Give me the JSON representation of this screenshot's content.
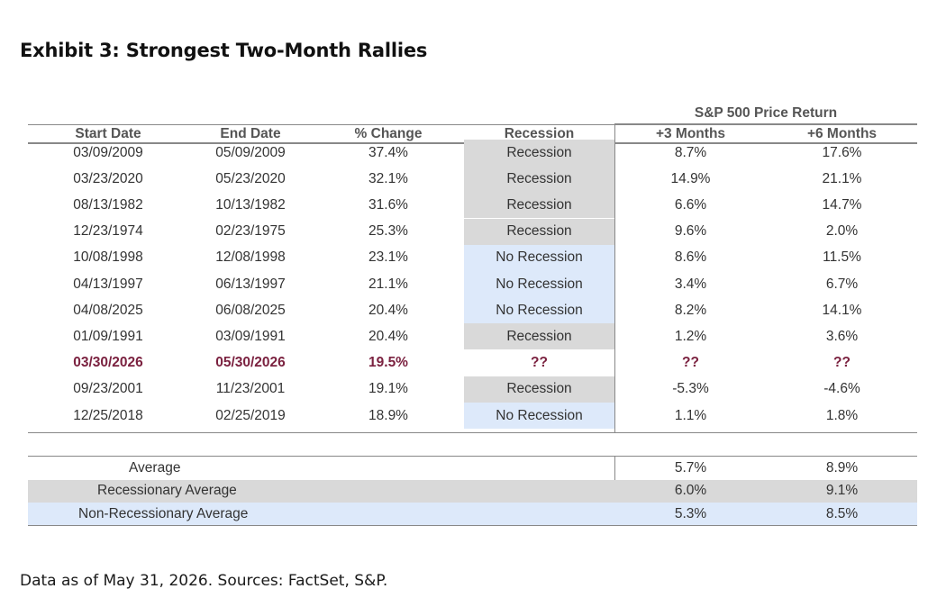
{
  "title": "Exhibit 3: Strongest Two-Month Rallies",
  "footnote": "Data as of May 31, 2026. Sources: FactSet, S&P.",
  "table": {
    "group_header": "S&P 500 Price Return",
    "columns": [
      "Start Date",
      "End Date",
      "% Change",
      "Recession",
      "+3 Months",
      "+6 Months"
    ],
    "rows": [
      {
        "start": "03/09/2009",
        "end": "05/09/2009",
        "change": "37.4%",
        "recession": "Recession",
        "m3": "8.7%",
        "m6": "17.6%"
      },
      {
        "start": "03/23/2020",
        "end": "05/23/2020",
        "change": "32.1%",
        "recession": "Recession",
        "m3": "14.9%",
        "m6": "21.1%"
      },
      {
        "start": "08/13/1982",
        "end": "10/13/1982",
        "change": "31.6%",
        "recession": "Recession",
        "m3": "6.6%",
        "m6": "14.7%"
      },
      {
        "start": "12/23/1974",
        "end": "02/23/1975",
        "change": "25.3%",
        "recession": "Recession",
        "m3": "9.6%",
        "m6": "2.0%"
      },
      {
        "start": "10/08/1998",
        "end": "12/08/1998",
        "change": "23.1%",
        "recession": "No Recession",
        "m3": "8.6%",
        "m6": "11.5%"
      },
      {
        "start": "04/13/1997",
        "end": "06/13/1997",
        "change": "21.1%",
        "recession": "No Recession",
        "m3": "3.4%",
        "m6": "6.7%"
      },
      {
        "start": "04/08/2025",
        "end": "06/08/2025",
        "change": "20.4%",
        "recession": "No Recession",
        "m3": "8.2%",
        "m6": "14.1%"
      },
      {
        "start": "01/09/1991",
        "end": "03/09/1991",
        "change": "20.4%",
        "recession": "Recession",
        "m3": "1.2%",
        "m6": "3.6%"
      },
      {
        "start": "03/30/2026",
        "end": "05/30/2026",
        "change": "19.5%",
        "recession": "??",
        "m3": "??",
        "m6": "??"
      },
      {
        "start": "09/23/2001",
        "end": "11/23/2001",
        "change": "19.1%",
        "recession": "Recession",
        "m3": "-5.3%",
        "m6": "-4.6%"
      },
      {
        "start": "12/25/2018",
        "end": "02/25/2019",
        "change": "18.9%",
        "recession": "No Recession",
        "m3": "1.1%",
        "m6": "1.8%"
      }
    ],
    "averages": [
      {
        "label": "Average",
        "m3": "5.7%",
        "m6": "8.9%"
      },
      {
        "label": "Recessionary Average",
        "m3": "6.0%",
        "m6": "9.1%"
      },
      {
        "label": "Non-Recessionary Average",
        "m3": "5.3%",
        "m6": "8.5%"
      }
    ]
  },
  "colors": {
    "recession_shade": "#d9d9d9",
    "no_recession_shade": "#dde9fa",
    "highlight_text": "#7b2240"
  }
}
